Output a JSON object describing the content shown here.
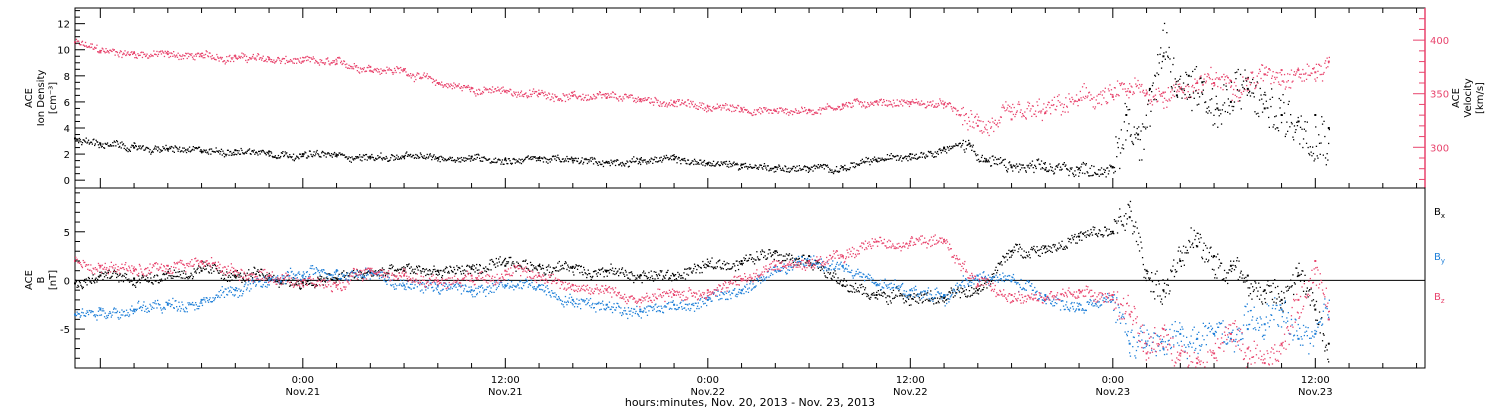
{
  "footer": {
    "xlabel": "hours:minutes, Nov. 20, 2013 - Nov. 23, 2013"
  },
  "chart_data": [
    {
      "type": "scatter",
      "panel": "density-velocity",
      "left_axis_label": [
        "ACE",
        "Ion Density",
        "[cm⁻³]"
      ],
      "right_axis_label": [
        "ACE",
        "Velocity",
        "[km/s]"
      ],
      "x_label": "hours:minutes, Nov. 20, 2013 - Nov. 23, 2013",
      "x_ticks": [
        {
          "hours": 24,
          "time": "0:00",
          "day": "Nov.21"
        },
        {
          "hours": 36,
          "time": "12:00",
          "day": "Nov.21"
        },
        {
          "hours": 48,
          "time": "0:00",
          "day": "Nov.22"
        },
        {
          "hours": 60,
          "time": "12:00",
          "day": "Nov.22"
        },
        {
          "hours": 72,
          "time": "0:00",
          "day": "Nov.23"
        },
        {
          "hours": 84,
          "time": "12:00",
          "day": "Nov.23"
        }
      ],
      "x_range_hours": [
        10.5,
        90.5
      ],
      "left_axis": {
        "range": [
          -0.6,
          13.2
        ],
        "ticks": [
          0,
          2,
          4,
          6,
          8,
          10,
          12
        ]
      },
      "right_axis": {
        "range": [
          262,
          430
        ],
        "ticks": [
          300,
          350,
          400
        ],
        "color": "#e8446d"
      },
      "series": [
        {
          "name": "Ion Density",
          "axis": "left",
          "color": "#000000",
          "x_hours": [
            10.5,
            12,
            14,
            16,
            18,
            20,
            22,
            24,
            26,
            28,
            30,
            32,
            34,
            36,
            38,
            40,
            42,
            44,
            46,
            48,
            50,
            52,
            54,
            56,
            58,
            60,
            62,
            63.5,
            64.5,
            66,
            68,
            70,
            72,
            72.8,
            73.5,
            74.2,
            75,
            75.8,
            76.5,
            77.3,
            78.2,
            79,
            80,
            81,
            82,
            83,
            84,
            84.8
          ],
          "values": [
            3.2,
            2.8,
            2.5,
            2.4,
            2.2,
            2.3,
            2.2,
            2.0,
            1.9,
            1.8,
            1.8,
            1.7,
            1.8,
            1.6,
            1.7,
            1.5,
            1.4,
            1.6,
            1.6,
            1.3,
            1.2,
            1.0,
            0.9,
            1.0,
            1.5,
            2.0,
            2.5,
            2.8,
            1.5,
            1.0,
            0.8,
            0.9,
            1.0,
            5.0,
            3.5,
            7.0,
            9.5,
            6.5,
            8.0,
            7.5,
            5.5,
            6.0,
            7.0,
            5.5,
            5.0,
            4.5,
            5.0,
            4.0
          ]
        },
        {
          "name": "Velocity",
          "axis": "right",
          "color": "#e8446d",
          "x_hours": [
            10.5,
            12,
            14,
            16,
            18,
            20,
            22,
            24,
            26,
            28,
            30,
            32,
            34,
            36,
            38,
            40,
            42,
            44,
            46,
            48,
            50,
            52,
            54,
            56,
            58,
            60,
            62,
            64,
            66,
            68,
            70,
            72,
            73,
            74,
            75,
            76,
            77,
            78,
            79,
            80,
            81,
            82,
            83,
            84,
            84.8
          ],
          "values": [
            398,
            390,
            388,
            387,
            385,
            385,
            382,
            380,
            378,
            375,
            372,
            360,
            355,
            352,
            350,
            348,
            346,
            345,
            342,
            338,
            336,
            334,
            335,
            340,
            343,
            342,
            340,
            320,
            326,
            332,
            344,
            347,
            352,
            350,
            351,
            355,
            360,
            360,
            362,
            364,
            368,
            372,
            372,
            370,
            380
          ]
        }
      ]
    },
    {
      "type": "scatter",
      "panel": "magnetic-field",
      "left_axis_label": [
        "ACE",
        "B",
        "[nT]"
      ],
      "x_range_hours": [
        10.5,
        90.5
      ],
      "y_axis": {
        "range": [
          -9,
          9.5
        ],
        "ticks": [
          -5,
          0,
          5
        ],
        "zero_line": true
      },
      "legend": [
        {
          "name": "Bx",
          "base": "B",
          "sub": "x",
          "color": "#000000"
        },
        {
          "name": "By",
          "base": "B",
          "sub": "y",
          "color": "#1e7fd8"
        },
        {
          "name": "Bz",
          "base": "B",
          "sub": "z",
          "color": "#e8446d"
        }
      ],
      "legend_position": "right",
      "series": [
        {
          "name": "Bx",
          "color": "#000000",
          "x_hours": [
            10.5,
            12,
            14,
            16,
            18,
            20,
            22,
            24,
            26,
            28,
            30,
            32,
            34,
            36,
            38,
            40,
            42,
            44,
            46,
            48,
            50,
            52,
            54,
            56,
            58,
            60,
            62,
            64,
            66,
            68,
            70,
            72,
            73,
            74,
            75,
            76,
            77,
            78,
            79,
            80,
            81,
            82,
            83,
            84,
            84.8
          ],
          "values": [
            -0.3,
            0.5,
            0.2,
            0.8,
            1.0,
            0.5,
            0.3,
            -0.2,
            0.2,
            0.8,
            1.0,
            1.0,
            1.2,
            1.5,
            1.5,
            1.4,
            1.0,
            0.5,
            0.5,
            1.5,
            2.0,
            3.0,
            2.5,
            -0.5,
            -1.5,
            -1.5,
            -1.8,
            -1.0,
            3.0,
            3.5,
            4.5,
            5.0,
            6.5,
            1.0,
            -1.0,
            2.0,
            3.5,
            2.5,
            1.5,
            0.5,
            -1.0,
            -2.0,
            0.5,
            -3.0,
            -6.5
          ]
        },
        {
          "name": "By",
          "color": "#1e7fd8",
          "x_hours": [
            10.5,
            12,
            14,
            16,
            18,
            20,
            22,
            24,
            26,
            28,
            30,
            32,
            34,
            36,
            38,
            40,
            42,
            44,
            46,
            48,
            50,
            52,
            54,
            56,
            58,
            60,
            62,
            64,
            66,
            68,
            70,
            72,
            73,
            74,
            75,
            76,
            77,
            78,
            79,
            80,
            81,
            82,
            83,
            84,
            84.8
          ],
          "values": [
            -3.5,
            -3.0,
            -3.0,
            -2.5,
            -2.0,
            -1.0,
            0.0,
            0.5,
            1.0,
            1.0,
            -0.5,
            -0.5,
            -1.0,
            -0.5,
            -0.5,
            -2.0,
            -2.5,
            -3.0,
            -2.5,
            -2.0,
            -1.0,
            1.0,
            2.0,
            1.5,
            -0.5,
            -1.0,
            -1.5,
            0.5,
            0.0,
            -1.5,
            -3.0,
            -2.0,
            -6.5,
            -6.5,
            -7.0,
            -5.5,
            -6.0,
            -5.5,
            -6.0,
            -5.0,
            -4.5,
            -3.0,
            -6.0,
            -5.5,
            -4.0
          ]
        },
        {
          "name": "Bz",
          "color": "#e8446d",
          "x_hours": [
            10.5,
            12,
            14,
            16,
            18,
            20,
            22,
            24,
            26,
            28,
            30,
            32,
            34,
            36,
            38,
            40,
            42,
            44,
            46,
            48,
            50,
            52,
            54,
            56,
            58,
            60,
            62,
            64,
            66,
            68,
            70,
            72,
            73,
            74,
            75,
            76,
            77,
            78,
            79,
            80,
            81,
            82,
            83,
            84,
            84.8
          ],
          "values": [
            2.0,
            1.5,
            1.0,
            1.5,
            2.0,
            1.0,
            0.5,
            0.0,
            -0.5,
            1.0,
            0.5,
            0.0,
            0.5,
            1.0,
            0.5,
            -0.5,
            -1.0,
            -2.0,
            -1.5,
            -1.0,
            0.0,
            1.5,
            2.0,
            2.5,
            4.0,
            4.0,
            4.0,
            -0.5,
            -1.5,
            -2.0,
            -1.0,
            -1.5,
            -3.5,
            -7.5,
            -5.0,
            -7.5,
            -8.5,
            -7.5,
            -5.5,
            -7.0,
            -8.5,
            -6.5,
            -2.0,
            2.0,
            -4.0
          ]
        }
      ]
    }
  ]
}
